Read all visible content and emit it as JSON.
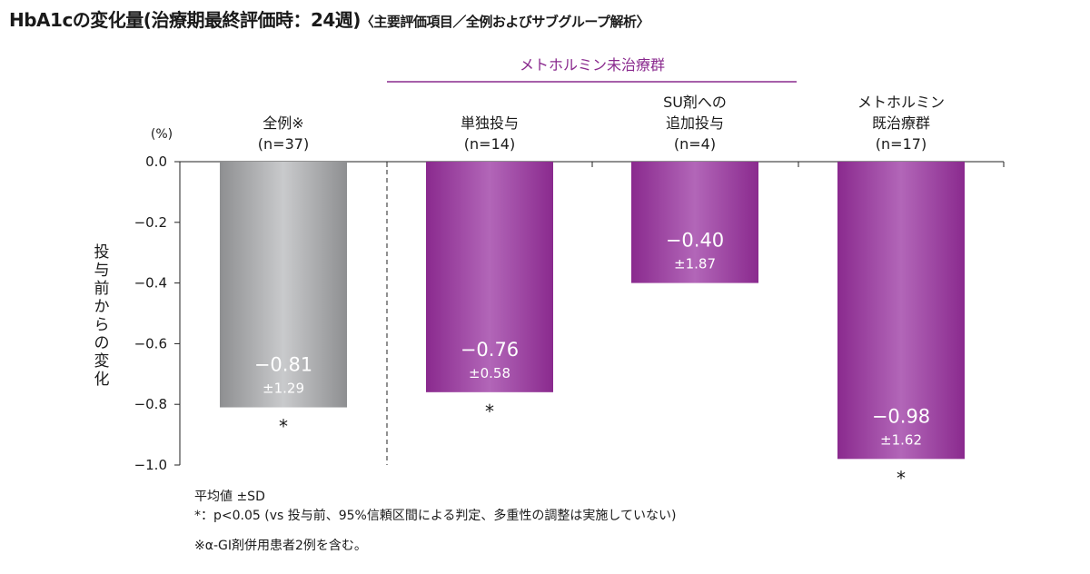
{
  "title": {
    "main": "HbA1cの変化量(治療期最終評価時：24週)",
    "sub": "〈主要評価項目／全例およびサブグループ解析〉"
  },
  "notes": {
    "line1": "平均値 ±SD",
    "line2": "*：p<0.05 (vs 投与前、95%信頼区間による判定、多重性の調整は実施していない)",
    "line3": "※α-GI剤併用患者2例を含む。"
  },
  "chart_data": {
    "type": "bar",
    "title": "HbA1cの変化量(治療期最終評価時：24週)",
    "ylabel": "投与前からの変化",
    "yunit": "(%)",
    "ylim": [
      -1.0,
      0.0
    ],
    "yticks": [
      "0.0",
      "−0.2",
      "−0.4",
      "−0.6",
      "−0.8",
      "−1.0"
    ],
    "ytick_values": [
      0.0,
      -0.2,
      -0.4,
      -0.6,
      -0.8,
      -1.0
    ],
    "group_label": "メトホルミン未治療群",
    "categories": [
      {
        "lines": [
          "全例※",
          "(n=37)"
        ],
        "value": -0.81,
        "value_label": "−0.81",
        "sd_label": "±1.29",
        "significant": "*",
        "color": "gray"
      },
      {
        "lines": [
          "単独投与",
          "(n=14)"
        ],
        "value": -0.76,
        "value_label": "−0.76",
        "sd_label": "±0.58",
        "significant": "*",
        "color": "purple"
      },
      {
        "lines": [
          "SU剤への",
          "追加投与",
          "(n=4)"
        ],
        "value": -0.4,
        "value_label": "−0.40",
        "sd_label": "±1.87",
        "significant": "",
        "color": "purple"
      },
      {
        "lines": [
          "メトホルミン",
          "既治療群",
          "(n=17)"
        ],
        "value": -0.98,
        "value_label": "−0.98",
        "sd_label": "±1.62",
        "significant": "*",
        "color": "purple"
      }
    ],
    "colors": {
      "purple_dark": "#8a2a8e",
      "purple_light": "#b266b8",
      "gray_dark": "#8e8f91",
      "gray_light": "#c9cacc",
      "group_line": "#8a2a8e"
    }
  }
}
